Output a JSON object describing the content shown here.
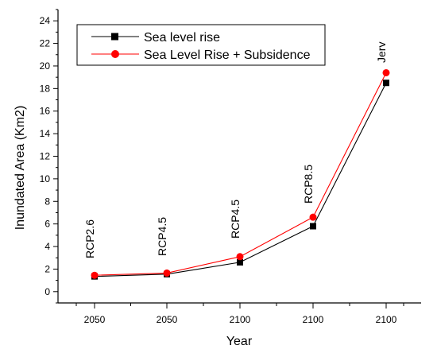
{
  "chart_data": {
    "type": "line",
    "xlabel": "Year",
    "ylabel": "Inundated Area (Km2)",
    "categories": [
      "2050",
      "2050",
      "2100",
      "2100",
      "2100"
    ],
    "scenario_labels": [
      "RCP2.6",
      "RCP4.5",
      "RCP4.5",
      "RCP8.5",
      "Jerv"
    ],
    "ylim": [
      -1,
      25
    ],
    "yticks": [
      0,
      2,
      4,
      6,
      8,
      10,
      12,
      14,
      16,
      18,
      20,
      22,
      24
    ],
    "ytick_labels": [
      "0",
      "2",
      "4",
      "6",
      "8",
      "10",
      "12",
      "14",
      "16",
      "18",
      "20",
      "22",
      "24"
    ],
    "legend_position": "top-left",
    "grid": false,
    "series": [
      {
        "name": "Sea level rise",
        "values": [
          1.35,
          1.55,
          2.6,
          5.8,
          18.5
        ],
        "color": "#000000",
        "marker": "square"
      },
      {
        "name": "Sea Level Rise + Subsidence",
        "values": [
          1.45,
          1.65,
          3.1,
          6.6,
          19.4
        ],
        "color": "#ff0000",
        "marker": "circle"
      }
    ]
  }
}
